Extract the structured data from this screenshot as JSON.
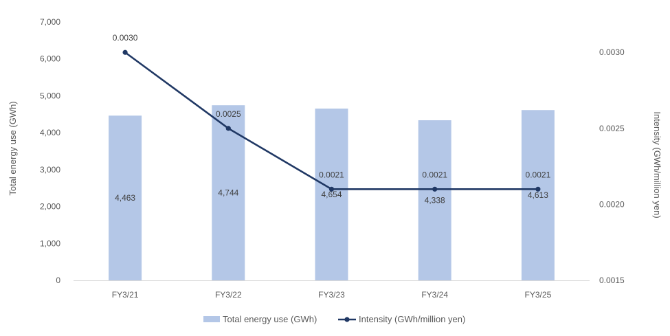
{
  "chart_data": {
    "type": "bar+line",
    "title": "",
    "categories": [
      "FY3/21",
      "FY3/22",
      "FY3/23",
      "FY3/24",
      "FY3/25"
    ],
    "series": [
      {
        "name": "Total energy use (GWh)",
        "kind": "bar",
        "axis": "left",
        "values": [
          4463,
          4744,
          4654,
          4338,
          4613
        ],
        "labels": [
          "4,463",
          "4,744",
          "4,654",
          "4,338",
          "4,613"
        ],
        "color": "#b4c7e7"
      },
      {
        "name": "Intensity (GWh/million yen)",
        "kind": "line",
        "axis": "right",
        "values": [
          0.003,
          0.0025,
          0.0021,
          0.0021,
          0.0021
        ],
        "labels": [
          "0.0030",
          "0.0025",
          "0.0021",
          "0.0021",
          "0.0021"
        ],
        "color": "#203864"
      }
    ],
    "y_left": {
      "label": "Total energy use (GWh)",
      "ylim": [
        0,
        7000
      ],
      "ticks": [
        0,
        1000,
        2000,
        3000,
        4000,
        5000,
        6000,
        7000
      ],
      "tick_labels": [
        "0",
        "1,000",
        "2,000",
        "3,000",
        "4,000",
        "5,000",
        "6,000",
        "7,000"
      ]
    },
    "y_right": {
      "label": "Intensity (GWh/million yen)",
      "ylim": [
        0.0015,
        0.0032
      ],
      "ticks": [
        0.0015,
        0.002,
        0.0025,
        0.003
      ],
      "tick_labels": [
        "0.0015",
        "0.0020",
        "0.0025",
        "0.0030"
      ]
    },
    "grid": false,
    "legend": "bottom"
  }
}
